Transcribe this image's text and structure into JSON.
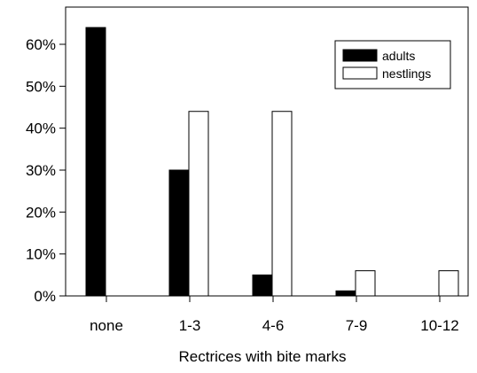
{
  "chart_data": {
    "type": "bar",
    "categories": [
      "none",
      "1-3",
      "4-6",
      "7-9",
      "10-12"
    ],
    "series": [
      {
        "name": "adults",
        "values": [
          64,
          30,
          5,
          1.2,
          0
        ],
        "color": "#000000"
      },
      {
        "name": "nestlings",
        "values": [
          0,
          44,
          44,
          6,
          6
        ],
        "color": "#ffffff"
      }
    ],
    "xlabel": "Rectrices with bite marks",
    "ylabel": "",
    "ylim": [
      0,
      60
    ],
    "yticks": [
      {
        "value": 0,
        "label": "0%"
      },
      {
        "value": 10,
        "label": "10%"
      },
      {
        "value": 20,
        "label": "20%"
      },
      {
        "value": 30,
        "label": "30%"
      },
      {
        "value": 40,
        "label": "40%"
      },
      {
        "value": 50,
        "label": "50%"
      },
      {
        "value": 60,
        "label": "60%"
      }
    ],
    "grid": false,
    "legend_position": "top-right"
  }
}
